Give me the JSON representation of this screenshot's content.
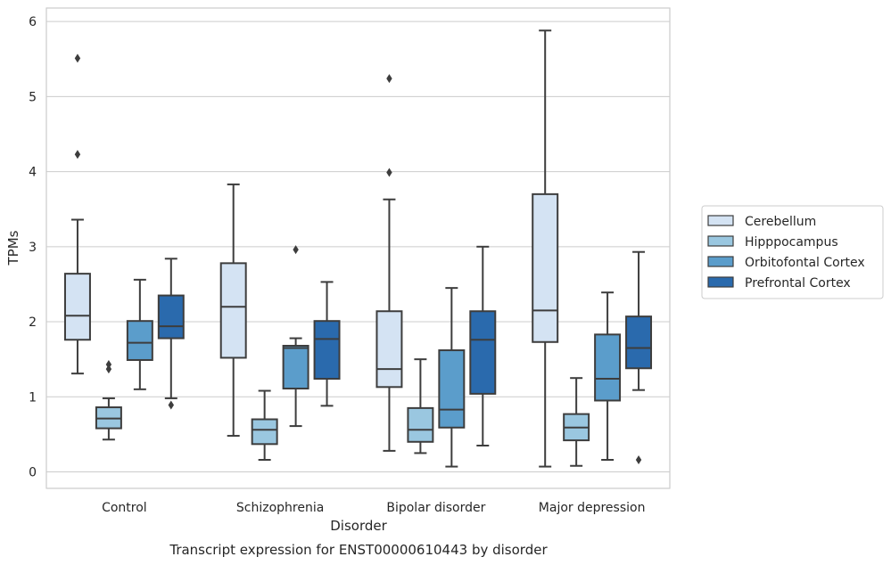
{
  "chart_data": {
    "type": "box",
    "title": "Transcript expression for ENST00000610443 by disorder",
    "xlabel": "Disorder",
    "ylabel": "TPMs",
    "ylim": [
      -0.22,
      6.18
    ],
    "yticks": [
      0,
      1,
      2,
      3,
      4,
      5,
      6
    ],
    "grid": true,
    "legend_position": "right",
    "categories": [
      "Control",
      "Schizophrenia",
      "Bipolar disorder",
      "Major depression"
    ],
    "series": [
      {
        "name": "Cerebellum",
        "color": "#d4e3f3",
        "boxes": [
          {
            "whislo": 1.31,
            "q1": 1.76,
            "med": 2.08,
            "q3": 2.64,
            "whishi": 3.36,
            "fliers": [
              4.23,
              5.51
            ]
          },
          {
            "whislo": 0.48,
            "q1": 1.52,
            "med": 2.2,
            "q3": 2.78,
            "whishi": 3.83,
            "fliers": []
          },
          {
            "whislo": 0.28,
            "q1": 1.13,
            "med": 1.37,
            "q3": 2.14,
            "whishi": 3.63,
            "fliers": [
              3.99,
              5.24
            ]
          },
          {
            "whislo": 0.07,
            "q1": 1.73,
            "med": 2.15,
            "q3": 3.7,
            "whishi": 5.88,
            "fliers": []
          }
        ]
      },
      {
        "name": "Hipppocampus",
        "color": "#9ac7e0",
        "boxes": [
          {
            "whislo": 0.43,
            "q1": 0.58,
            "med": 0.71,
            "q3": 0.86,
            "whishi": 0.98,
            "fliers": [
              1.37,
              1.43
            ]
          },
          {
            "whislo": 0.16,
            "q1": 0.37,
            "med": 0.56,
            "q3": 0.7,
            "whishi": 1.08,
            "fliers": []
          },
          {
            "whislo": 0.25,
            "q1": 0.4,
            "med": 0.56,
            "q3": 0.85,
            "whishi": 1.5,
            "fliers": []
          },
          {
            "whislo": 0.08,
            "q1": 0.42,
            "med": 0.59,
            "q3": 0.77,
            "whishi": 1.25,
            "fliers": []
          }
        ]
      },
      {
        "name": "Orbitofontal Cortex",
        "color": "#5b9dcb",
        "boxes": [
          {
            "whislo": 1.1,
            "q1": 1.49,
            "med": 1.72,
            "q3": 2.01,
            "whishi": 2.56,
            "fliers": []
          },
          {
            "whislo": 0.61,
            "q1": 1.11,
            "med": 1.65,
            "q3": 1.68,
            "whishi": 1.78,
            "fliers": [
              2.96
            ]
          },
          {
            "whislo": 0.07,
            "q1": 0.59,
            "med": 0.83,
            "q3": 1.62,
            "whishi": 2.45,
            "fliers": []
          },
          {
            "whislo": 0.16,
            "q1": 0.95,
            "med": 1.24,
            "q3": 1.83,
            "whishi": 2.39,
            "fliers": []
          }
        ]
      },
      {
        "name": "Prefrontal Cortex",
        "color": "#2a6aad",
        "boxes": [
          {
            "whislo": 0.98,
            "q1": 1.78,
            "med": 1.94,
            "q3": 2.35,
            "whishi": 2.84,
            "fliers": [
              0.89
            ]
          },
          {
            "whislo": 0.88,
            "q1": 1.24,
            "med": 1.77,
            "q3": 2.01,
            "whishi": 2.53,
            "fliers": []
          },
          {
            "whislo": 0.35,
            "q1": 1.04,
            "med": 1.76,
            "q3": 2.14,
            "whishi": 3.0,
            "fliers": []
          },
          {
            "whislo": 1.09,
            "q1": 1.38,
            "med": 1.65,
            "q3": 2.07,
            "whishi": 2.93,
            "fliers": [
              0.16
            ]
          }
        ]
      }
    ]
  }
}
